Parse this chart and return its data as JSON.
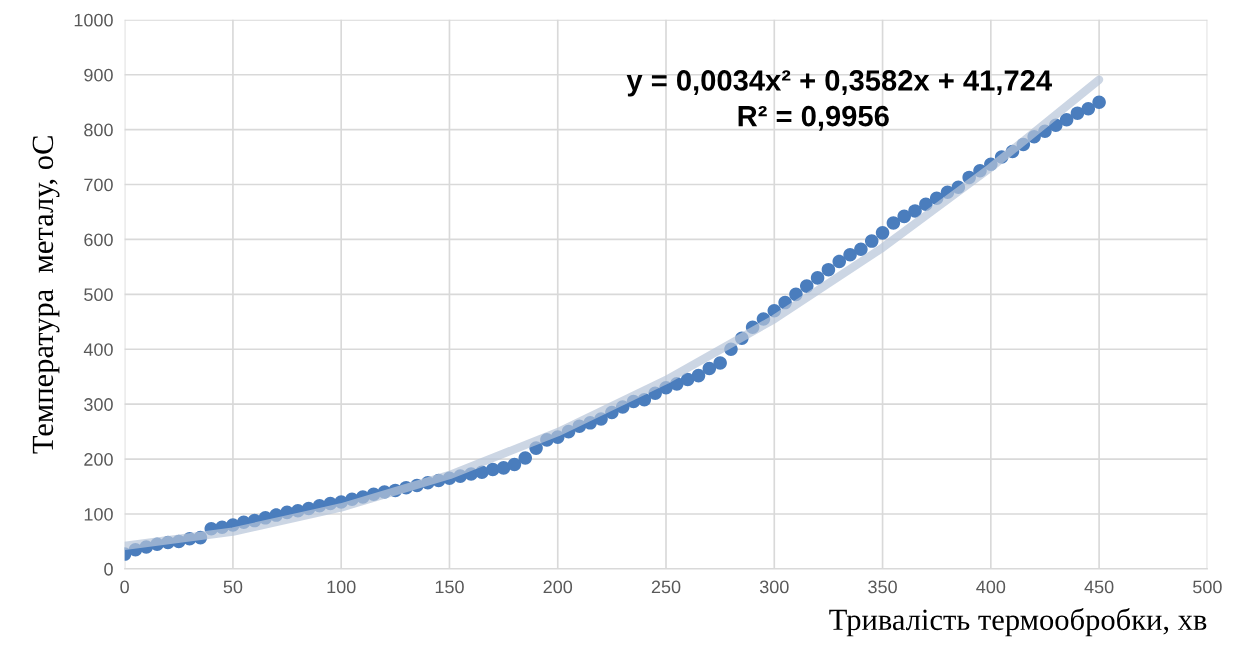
{
  "chart_data": {
    "type": "scatter",
    "xlabel": "Тривалість термообробки, хв",
    "ylabel": "Температура  металу, оС",
    "xlim": [
      0,
      500
    ],
    "xticks": [
      0,
      50,
      100,
      150,
      200,
      250,
      300,
      350,
      400,
      450,
      500
    ],
    "ylim": [
      0,
      1000
    ],
    "yticks": [
      0,
      100,
      200,
      300,
      400,
      500,
      600,
      700,
      800,
      900,
      1000
    ],
    "grid": true,
    "legend": false,
    "annotations": [
      "y = 0,0034x² + 0,3582x + 41,724",
      "R² = 0,9956"
    ],
    "series": [
      {
        "type": "line",
        "color": "#b7c4d8",
        "line_style": "solid",
        "marker": "none",
        "x": [
          0,
          50,
          100,
          150,
          200,
          250,
          300,
          350,
          400,
          450
        ],
        "values": [
          42,
          68,
          112,
          171,
          249,
          344,
          455,
          585,
          731,
          891
        ]
      },
      {
        "color": "#4a7dbd",
        "marker": "circle",
        "x": [
          0,
          5,
          10,
          15,
          20,
          25,
          30,
          35,
          40,
          45,
          50,
          55,
          60,
          65,
          70,
          75,
          80,
          85,
          90,
          95,
          100,
          105,
          110,
          115,
          120,
          125,
          130,
          135,
          140,
          145,
          150,
          155,
          160,
          165,
          170,
          175,
          180,
          185,
          190,
          195,
          200,
          205,
          210,
          215,
          220,
          225,
          230,
          235,
          240,
          245,
          250,
          255,
          260,
          265,
          270,
          275,
          280,
          285,
          290,
          295,
          300,
          305,
          310,
          315,
          320,
          325,
          330,
          335,
          340,
          345,
          350,
          355,
          360,
          365,
          370,
          375,
          380,
          385,
          390,
          395,
          400,
          405,
          410,
          415,
          420,
          425,
          430,
          435,
          440,
          445,
          450
        ],
        "values": [
          27,
          35,
          40,
          45,
          48,
          50,
          55,
          57,
          73,
          76,
          80,
          85,
          88,
          93,
          98,
          103,
          106,
          110,
          115,
          119,
          122,
          127,
          131,
          136,
          140,
          143,
          148,
          152,
          157,
          161,
          165,
          169,
          173,
          176,
          181,
          184,
          190,
          202,
          220,
          235,
          240,
          250,
          260,
          266,
          273,
          285,
          295,
          305,
          308,
          320,
          330,
          337,
          345,
          352,
          365,
          375,
          400,
          420,
          440,
          455,
          470,
          485,
          500,
          515,
          530,
          545,
          560,
          572,
          582,
          597,
          612,
          630,
          642,
          652,
          664,
          675,
          686,
          695,
          713,
          725,
          737,
          750,
          760,
          773,
          787,
          797,
          808,
          818,
          830,
          838,
          850
        ]
      }
    ]
  }
}
